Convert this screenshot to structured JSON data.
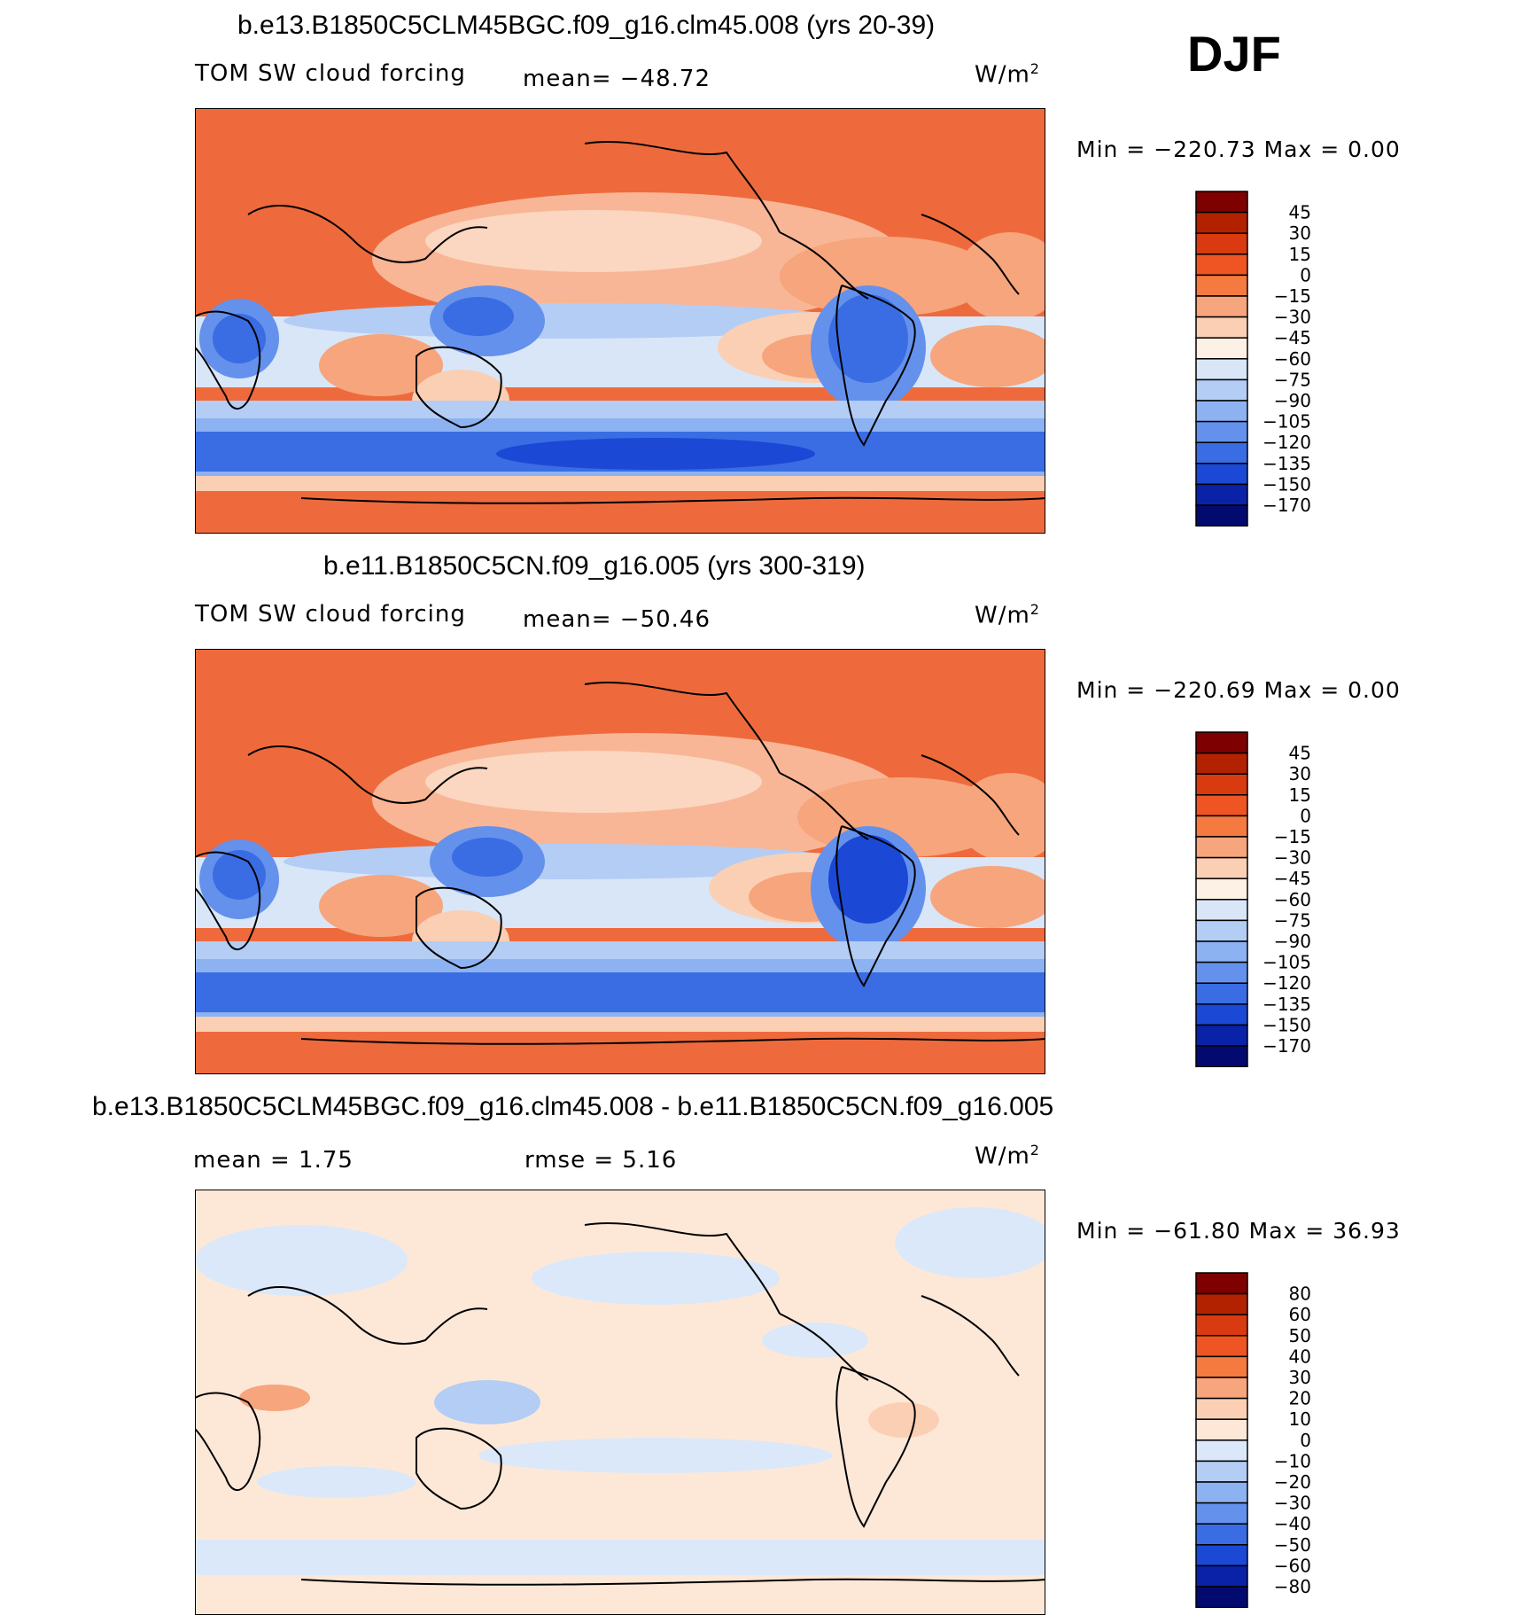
{
  "season": "DJF",
  "panels": [
    {
      "title": "b.e13.B1850C5CLM45BGC.f09_g16.clm45.008 (yrs 20-39)",
      "left_label": "TOM SW cloud forcing",
      "center_label": "mean= −48.72",
      "units": "W/m",
      "units_sup": "2",
      "minmax": "Min = −220.73  Max =     0.00",
      "colorbar": {
        "labels": [
          "45",
          "30",
          "15",
          "0",
          "−15",
          "−30",
          "−45",
          "−60",
          "−75",
          "−90",
          "−105",
          "−120",
          "−135",
          "−150",
          "−170"
        ],
        "colors": [
          "#7f0000",
          "#b22200",
          "#d93a10",
          "#ee5522",
          "#f47a3f",
          "#f7a57c",
          "#fbcfb3",
          "#fdf1e6",
          "#d8e6f8",
          "#b3cdf5",
          "#8db2f2",
          "#6491ec",
          "#3a6de3",
          "#1b48d4",
          "#0a22a8",
          "#020a70"
        ]
      }
    },
    {
      "title": "b.e11.B1850C5CN.f09_g16.005 (yrs 300-319)",
      "left_label": "TOM SW cloud forcing",
      "center_label": "mean= −50.46",
      "units": "W/m",
      "units_sup": "2",
      "minmax": "Min = −220.69  Max =     0.00",
      "colorbar": {
        "labels": [
          "45",
          "30",
          "15",
          "0",
          "−15",
          "−30",
          "−45",
          "−60",
          "−75",
          "−90",
          "−105",
          "−120",
          "−135",
          "−150",
          "−170"
        ],
        "colors": [
          "#7f0000",
          "#b22200",
          "#d93a10",
          "#ee5522",
          "#f47a3f",
          "#f7a57c",
          "#fbcfb3",
          "#fdf1e6",
          "#d8e6f8",
          "#b3cdf5",
          "#8db2f2",
          "#6491ec",
          "#3a6de3",
          "#1b48d4",
          "#0a22a8",
          "#020a70"
        ]
      }
    },
    {
      "title": "b.e13.B1850C5CLM45BGC.f09_g16.clm45.008 - b.e11.B1850C5CN.f09_g16.005",
      "left_label": "mean =     1.75",
      "center_label": "rmse =     5.16",
      "units": "W/m",
      "units_sup": "2",
      "minmax": "Min = −61.80  Max =   36.93",
      "colorbar": {
        "labels": [
          "80",
          "60",
          "50",
          "40",
          "30",
          "20",
          "10",
          "0",
          "−10",
          "−20",
          "−30",
          "−40",
          "−50",
          "−60",
          "−80"
        ],
        "colors": [
          "#7f0000",
          "#b22200",
          "#d93a10",
          "#ee5522",
          "#f47a3f",
          "#f7a57c",
          "#fbcfb3",
          "#fde8d8",
          "#dbe8f9",
          "#b3cdf5",
          "#8db2f2",
          "#6491ec",
          "#3a6de3",
          "#1b48d4",
          "#0a22a8",
          "#020a70"
        ]
      }
    }
  ]
}
